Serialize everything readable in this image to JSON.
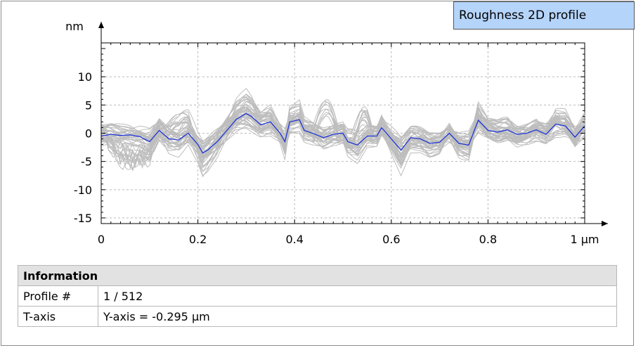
{
  "window": {
    "title": "Roughness 2D profile"
  },
  "chart_data": {
    "type": "line",
    "title": "",
    "xlabel": "",
    "ylabel": "",
    "x_unit": "µm",
    "y_unit": "nm",
    "xlim": [
      0,
      1
    ],
    "ylim": [
      -16,
      16
    ],
    "x_ticks": [
      0,
      0.2,
      0.4,
      0.6,
      0.8,
      1
    ],
    "x_tick_labels": [
      "0",
      "0.2",
      "0.4",
      "0.6",
      "0.8",
      "1 µm"
    ],
    "y_ticks": [
      10,
      5,
      0,
      -5,
      -10,
      -15
    ],
    "y_tick_labels": [
      "10",
      "5",
      "0",
      "-5",
      "-10",
      "-15"
    ],
    "grid": true,
    "legend": "none",
    "colors": {
      "selected_profile": "#1f35d6",
      "other_profiles": "#bdbdbd"
    },
    "series": [
      {
        "x": [
          0,
          0.02,
          0.04,
          0.06,
          0.08,
          0.1,
          0.12,
          0.14,
          0.16,
          0.18,
          0.2,
          0.21,
          0.22,
          0.24,
          0.26,
          0.28,
          0.3,
          0.31,
          0.33,
          0.35,
          0.37,
          0.38,
          0.39,
          0.41,
          0.42,
          0.44,
          0.46,
          0.48,
          0.5,
          0.51,
          0.53,
          0.55,
          0.57,
          0.58,
          0.6,
          0.62,
          0.64,
          0.66,
          0.68,
          0.7,
          0.72,
          0.74,
          0.76,
          0.78,
          0.8,
          0.82,
          0.84,
          0.86,
          0.88,
          0.9,
          0.92,
          0.94,
          0.96,
          0.98,
          1
        ],
        "y": [
          -0.5,
          -0.2,
          -0.4,
          -0.3,
          -0.6,
          -1.5,
          0.5,
          -1,
          -1.2,
          0,
          -2,
          -3.5,
          -3,
          -1.5,
          0.5,
          2.5,
          3.5,
          3,
          1.5,
          2,
          0,
          -1.5,
          2,
          2.4,
          0.5,
          -0.1,
          -0.8,
          -0.2,
          0,
          -1.5,
          -2.1,
          -0.5,
          -0.5,
          1,
          -1,
          -3,
          -0.8,
          -1,
          -1.8,
          -1.6,
          0,
          -1.8,
          -2.1,
          2.3,
          0.5,
          0.2,
          0.6,
          -0.2,
          0,
          0.6,
          -0.2,
          1.6,
          1.3,
          -0.7,
          1.3
        ]
      }
    ]
  },
  "info": {
    "header": "Information",
    "rows": [
      {
        "key": "Profile #",
        "value": "1 / 512"
      },
      {
        "key": "T-axis",
        "value": "Y-axis = -0.295 µm"
      }
    ]
  }
}
